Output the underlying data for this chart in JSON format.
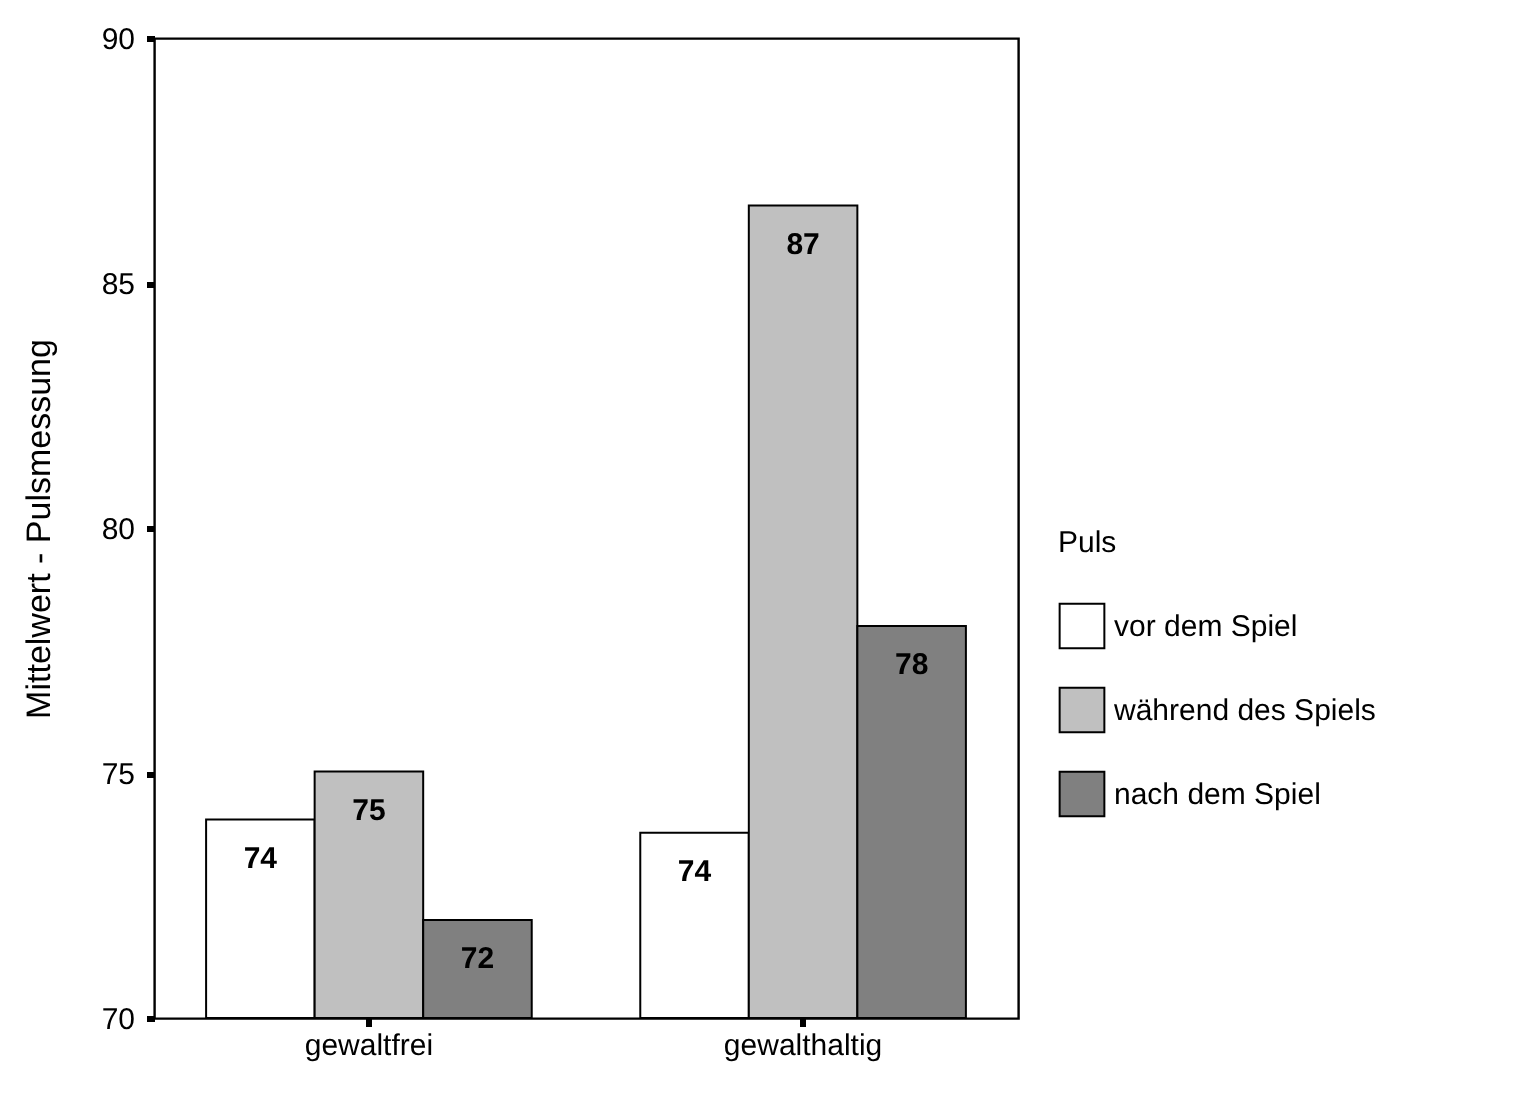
{
  "chart_data": {
    "type": "bar",
    "ylabel": "Mittelwert - Pulsmessung",
    "legend_title": "Puls",
    "categories": [
      "gewaltfrei",
      "gewalthaltig"
    ],
    "series": [
      {
        "name": "vor dem Spiel",
        "color": "#ffffff",
        "values": [
          74.05,
          73.78
        ],
        "value_labels": [
          "74",
          "74"
        ]
      },
      {
        "name": "während des Spiels",
        "color": "#c0c0c0",
        "values": [
          75.03,
          86.58
        ],
        "value_labels": [
          "75",
          "87"
        ]
      },
      {
        "name": "nach dem Spiel",
        "color": "#808080",
        "values": [
          72.0,
          78.0
        ],
        "value_labels": [
          "72",
          "78"
        ]
      }
    ],
    "ylim": [
      70,
      90
    ],
    "yticks": [
      70,
      75,
      80,
      85,
      90
    ],
    "grid": false,
    "legend": "right"
  }
}
